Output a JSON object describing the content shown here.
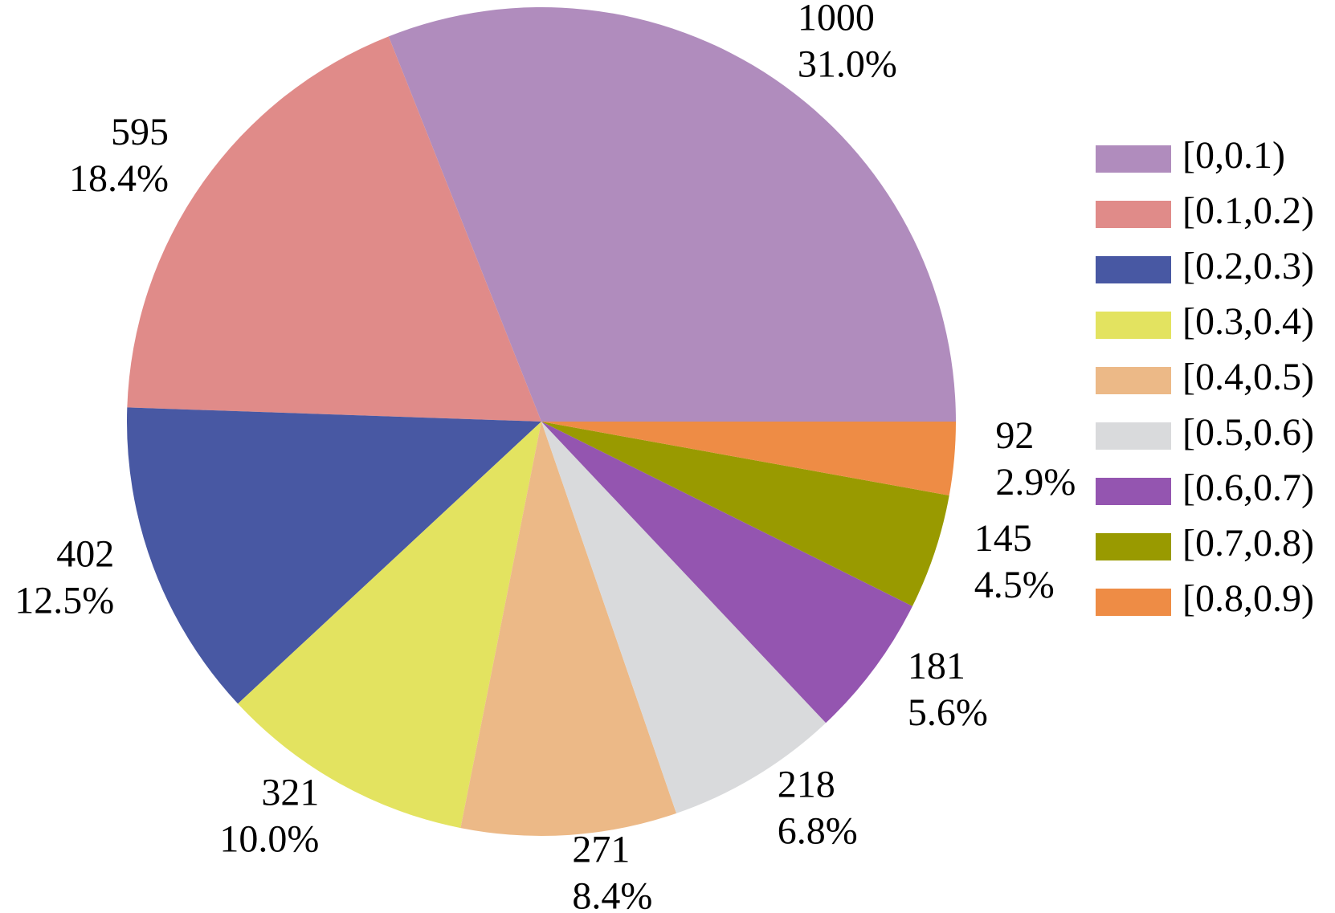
{
  "chart_data": {
    "type": "pie",
    "categories": [
      "[0,0.1)",
      "[0.1,0.2)",
      "[0.2,0.3)",
      "[0.3,0.4)",
      "[0.4,0.5)",
      "[0.5,0.6)",
      "[0.6,0.7)",
      "[0.7,0.8)",
      "[0.8,0.9)"
    ],
    "values": [
      1000,
      595,
      402,
      321,
      271,
      218,
      181,
      145,
      92
    ],
    "percent_labels": [
      "31.0%",
      "18.4%",
      "12.5%",
      "10.0%",
      "8.4%",
      "6.8%",
      "5.6%",
      "4.5%",
      "2.9%"
    ],
    "colors": [
      "#b08cbd",
      "#e08b89",
      "#4858a3",
      "#e3e360",
      "#ecb987",
      "#d9dadc",
      "#9455b0",
      "#999a00",
      "#ee8c45"
    ],
    "legend": "right"
  }
}
